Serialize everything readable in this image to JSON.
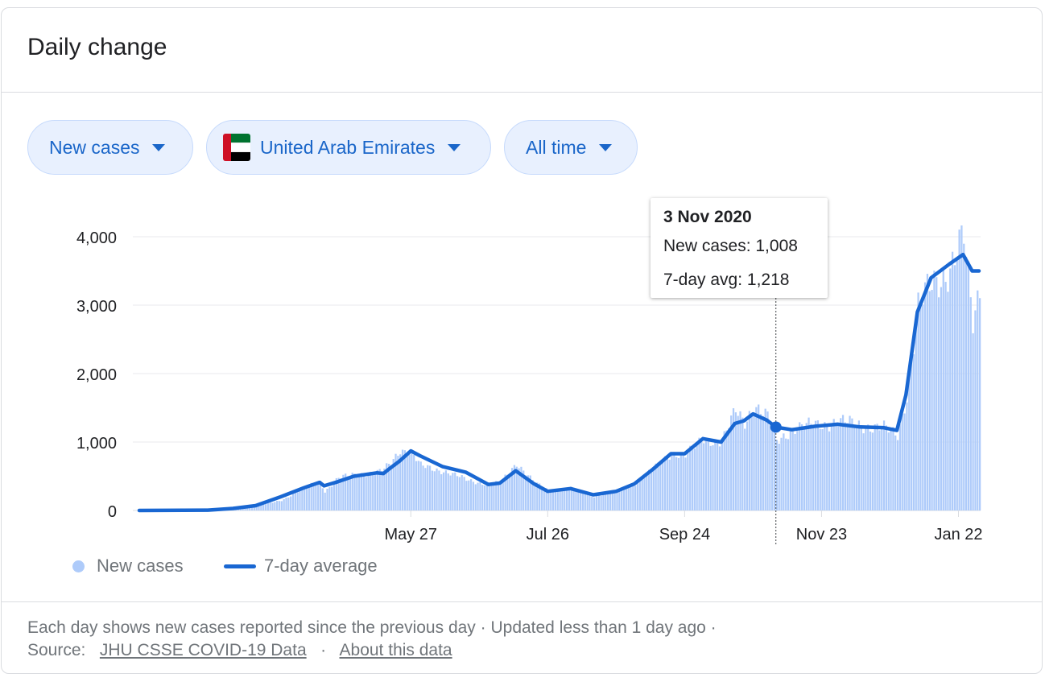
{
  "card": {
    "title": "Daily change"
  },
  "filters": {
    "metric": "New cases",
    "location": "United Arab Emirates",
    "location_flag_colors": [
      "#00732f",
      "#ffffff",
      "#000000",
      "#ce1126"
    ],
    "range": "All time"
  },
  "tooltip": {
    "date": "3 Nov 2020",
    "new_cases_text": "New cases: 1,008",
    "avg_text": "7-day avg: 1,218"
  },
  "legend": {
    "bars_label": "New cases",
    "line_label": "7-day average"
  },
  "footer": {
    "line1": "Each day shows new cases reported since the previous day · Updated less than 1 day ago ·",
    "source_prefix": "Source:",
    "source_link": "JHU CSSE COVID-19 Data",
    "separator": "·",
    "about_link": "About this data"
  },
  "colors": {
    "bar": "#aecbfa",
    "line": "#1967d2",
    "grid": "#e8eaed",
    "axis_text": "#202124"
  },
  "chart_data": {
    "type": "bar",
    "title": "",
    "xlabel": "",
    "ylabel": "",
    "ylim": [
      0,
      4000
    ],
    "y_ticks": [
      0,
      1000,
      2000,
      3000,
      4000
    ],
    "y_tick_labels": [
      "0",
      "1,000",
      "2,000",
      "3,000",
      "4,000"
    ],
    "x_tick_labels": [
      "May 27",
      "Jul 26",
      "Sep 24",
      "Nov 23",
      "Jan 22"
    ],
    "x_start": "2020-01-29",
    "x_end": "2021-01-31",
    "x_ticks": [
      "2020-05-27",
      "2020-07-26",
      "2020-09-24",
      "2020-11-23",
      "2021-01-22"
    ],
    "highlight_date": "2020-11-03",
    "series": [
      {
        "name": "New cases",
        "kind": "bar",
        "points": [
          [
            "2020-01-29",
            0
          ],
          [
            "2020-02-28",
            5
          ],
          [
            "2020-03-10",
            20
          ],
          [
            "2020-03-20",
            60
          ],
          [
            "2020-03-31",
            150
          ],
          [
            "2020-04-10",
            330
          ],
          [
            "2020-04-17",
            430
          ],
          [
            "2020-04-19",
            280
          ],
          [
            "2020-04-25",
            470
          ],
          [
            "2020-05-02",
            530
          ],
          [
            "2020-05-12",
            550
          ],
          [
            "2020-05-15",
            600
          ],
          [
            "2020-05-18",
            700
          ],
          [
            "2020-05-22",
            900
          ],
          [
            "2020-05-27",
            840
          ],
          [
            "2020-05-31",
            650
          ],
          [
            "2020-06-10",
            580
          ],
          [
            "2020-06-20",
            450
          ],
          [
            "2020-06-30",
            380
          ],
          [
            "2020-07-05",
            400
          ],
          [
            "2020-07-12",
            700
          ],
          [
            "2020-07-20",
            400
          ],
          [
            "2020-07-26",
            290
          ],
          [
            "2020-08-05",
            320
          ],
          [
            "2020-08-15",
            210
          ],
          [
            "2020-08-25",
            280
          ],
          [
            "2020-09-02",
            400
          ],
          [
            "2020-09-10",
            600
          ],
          [
            "2020-09-18",
            850
          ],
          [
            "2020-09-24",
            800
          ],
          [
            "2020-10-02",
            1050
          ],
          [
            "2020-10-10",
            1000
          ],
          [
            "2020-10-16",
            1450
          ],
          [
            "2020-10-20",
            1300
          ],
          [
            "2020-10-24",
            1550
          ],
          [
            "2020-10-30",
            1350
          ],
          [
            "2020-11-03",
            1008
          ],
          [
            "2020-11-10",
            1200
          ],
          [
            "2020-11-20",
            1250
          ],
          [
            "2020-11-30",
            1300
          ],
          [
            "2020-12-10",
            1250
          ],
          [
            "2020-12-20",
            1200
          ],
          [
            "2020-12-26",
            1100
          ],
          [
            "2020-12-30",
            1700
          ],
          [
            "2021-01-04",
            2950
          ],
          [
            "2021-01-10",
            3300
          ],
          [
            "2021-01-18",
            3550
          ],
          [
            "2021-01-24",
            3950
          ],
          [
            "2021-01-28",
            2750
          ],
          [
            "2021-01-31",
            3300
          ]
        ]
      },
      {
        "name": "7-day average",
        "kind": "line",
        "points": [
          [
            "2020-01-29",
            0
          ],
          [
            "2020-02-28",
            5
          ],
          [
            "2020-03-10",
            30
          ],
          [
            "2020-03-20",
            70
          ],
          [
            "2020-03-31",
            200
          ],
          [
            "2020-04-10",
            330
          ],
          [
            "2020-04-17",
            410
          ],
          [
            "2020-04-19",
            360
          ],
          [
            "2020-04-25",
            420
          ],
          [
            "2020-05-02",
            500
          ],
          [
            "2020-05-12",
            550
          ],
          [
            "2020-05-15",
            540
          ],
          [
            "2020-05-18",
            620
          ],
          [
            "2020-05-22",
            720
          ],
          [
            "2020-05-27",
            870
          ],
          [
            "2020-05-31",
            800
          ],
          [
            "2020-06-10",
            640
          ],
          [
            "2020-06-20",
            560
          ],
          [
            "2020-06-30",
            380
          ],
          [
            "2020-07-05",
            400
          ],
          [
            "2020-07-12",
            580
          ],
          [
            "2020-07-20",
            390
          ],
          [
            "2020-07-26",
            280
          ],
          [
            "2020-08-05",
            320
          ],
          [
            "2020-08-15",
            230
          ],
          [
            "2020-08-25",
            280
          ],
          [
            "2020-09-02",
            390
          ],
          [
            "2020-09-10",
            600
          ],
          [
            "2020-09-18",
            830
          ],
          [
            "2020-09-24",
            830
          ],
          [
            "2020-10-02",
            1050
          ],
          [
            "2020-10-10",
            1000
          ],
          [
            "2020-10-16",
            1270
          ],
          [
            "2020-10-20",
            1310
          ],
          [
            "2020-10-24",
            1410
          ],
          [
            "2020-10-30",
            1320
          ],
          [
            "2020-11-03",
            1218
          ],
          [
            "2020-11-10",
            1180
          ],
          [
            "2020-11-20",
            1230
          ],
          [
            "2020-11-30",
            1260
          ],
          [
            "2020-12-10",
            1220
          ],
          [
            "2020-12-20",
            1210
          ],
          [
            "2020-12-26",
            1170
          ],
          [
            "2020-12-30",
            1690
          ],
          [
            "2021-01-04",
            2900
          ],
          [
            "2021-01-10",
            3400
          ],
          [
            "2021-01-18",
            3600
          ],
          [
            "2021-01-24",
            3740
          ],
          [
            "2021-01-28",
            3500
          ],
          [
            "2021-01-31",
            3500
          ]
        ]
      }
    ]
  }
}
